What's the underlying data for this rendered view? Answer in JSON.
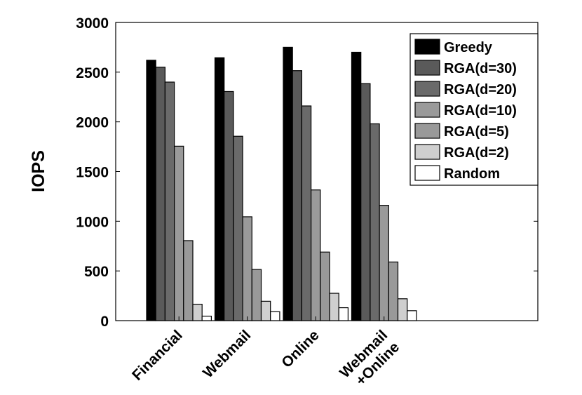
{
  "chart_data": {
    "type": "bar",
    "title": "",
    "xlabel": "",
    "ylabel": "IOPS",
    "ylim": [
      0,
      3000
    ],
    "yticks": [
      0,
      500,
      1000,
      1500,
      2000,
      2500,
      3000
    ],
    "categories": [
      "Financial",
      "Webmail",
      "Online",
      "Webmail\n+Online"
    ],
    "grid": false,
    "legend_position": "top-right",
    "series": [
      {
        "name": "Greedy",
        "color": "#000000",
        "values": [
          2620,
          2645,
          2750,
          2700
        ]
      },
      {
        "name": "RGA(d=30)",
        "color": "#5a5a5a",
        "values": [
          2550,
          2305,
          2515,
          2385
        ]
      },
      {
        "name": "RGA(d=20)",
        "color": "#6a6a6a",
        "values": [
          2400,
          1855,
          2160,
          1980
        ]
      },
      {
        "name": "RGA(d=10)",
        "color": "#9a9a9a",
        "values": [
          1755,
          1045,
          1315,
          1160
        ]
      },
      {
        "name": "RGA(d=5)",
        "color": "#999999",
        "values": [
          805,
          515,
          690,
          590
        ]
      },
      {
        "name": "RGA(d=2)",
        "color": "#cfcfcf",
        "values": [
          165,
          195,
          275,
          220
        ]
      },
      {
        "name": "Random",
        "color": "#ffffff",
        "values": [
          45,
          90,
          130,
          100
        ]
      }
    ]
  }
}
